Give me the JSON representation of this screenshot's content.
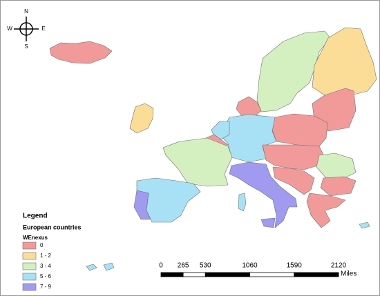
{
  "compass": {
    "north": "N",
    "south": "S",
    "west": "W",
    "east": "E"
  },
  "legend": {
    "title": "Legend",
    "layer": "European countries",
    "field": "WEnexus",
    "classes": [
      {
        "label": "0",
        "color": "#f29a9a"
      },
      {
        "label": "1 - 2",
        "color": "#fbdd98"
      },
      {
        "label": "3 - 4",
        "color": "#d5f0c0"
      },
      {
        "label": "5 - 6",
        "color": "#a8e1f5"
      },
      {
        "label": "7 - 9",
        "color": "#a09af0"
      }
    ]
  },
  "scale_bar": {
    "ticks": [
      0,
      265,
      530,
      1060,
      1590,
      2120
    ],
    "unit": "Miles"
  }
}
